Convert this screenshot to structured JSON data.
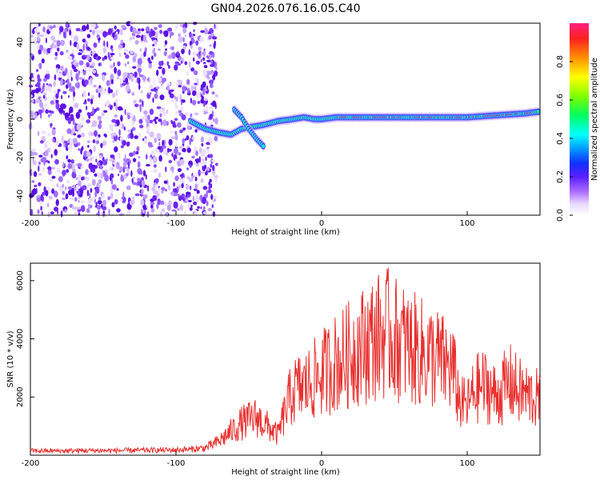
{
  "title": "GN04.2026.076.16.05.C40",
  "colors": {
    "snr_line": "#e8302e",
    "axis": "#000000",
    "background": "#ffffff"
  },
  "colorbar": {
    "label": "Normalized spectral amplitude",
    "ticks": [
      "0.0",
      "0.2",
      "0.4",
      "0.6",
      "0.8"
    ],
    "range": [
      0,
      1
    ]
  },
  "chart_data": [
    {
      "type": "heatmap",
      "title": "GN04.2026.076.16.05.C40",
      "xlabel": "Height of straight line (km)",
      "ylabel": "Frequency (Hz)",
      "xlim": [
        -200,
        150
      ],
      "ylim": [
        -50,
        50
      ],
      "x_ticks": [
        "-200",
        "-100",
        "0",
        "100"
      ],
      "y_ticks": [
        "40",
        "20",
        "0",
        "-20",
        "-40"
      ],
      "noise_region_x": [
        -200,
        -72
      ],
      "main_track": {
        "x": [
          -90,
          -80,
          -70,
          -62,
          -55,
          -48,
          -40,
          -30,
          -20,
          -12,
          -5,
          0,
          10,
          20,
          40,
          60,
          80,
          100,
          120,
          140,
          150
        ],
        "y": [
          -1,
          -5,
          -7,
          -8,
          -5,
          -4,
          -3,
          -1,
          0,
          1,
          0,
          0,
          1,
          1,
          1,
          1,
          1,
          1,
          2,
          3,
          4
        ]
      },
      "branch_track": {
        "x": [
          -60,
          -55,
          -50,
          -45,
          -40
        ],
        "y": [
          5,
          1,
          -5,
          -10,
          -14
        ]
      },
      "colorbar_label": "Normalized spectral amplitude"
    },
    {
      "type": "line",
      "xlabel": "Height of straight line (km)",
      "ylabel": "SNR (10 * v/v)",
      "xlim": [
        -200,
        150
      ],
      "ylim": [
        0,
        6600
      ],
      "x_ticks": [
        "-200",
        "-100",
        "0",
        "100"
      ],
      "y_ticks": [
        "6000",
        "4000",
        "2000"
      ],
      "series": [
        {
          "x": [
            -200,
            -180,
            -160,
            -140,
            -120,
            -100,
            -90,
            -80,
            -75,
            -70,
            -65,
            -60,
            -55,
            -50,
            -45,
            -40,
            -35,
            -30,
            -25,
            -20,
            -15,
            -10,
            -5,
            0,
            5,
            10,
            15,
            20,
            25,
            30,
            35,
            40,
            45,
            50,
            55,
            60,
            65,
            70,
            75,
            80,
            85,
            90,
            95,
            100,
            105,
            110,
            115,
            120,
            125,
            130,
            135,
            140,
            145,
            150
          ],
          "y": [
            150,
            150,
            160,
            160,
            170,
            180,
            200,
            250,
            350,
            500,
            700,
            900,
            1100,
            1200,
            1300,
            1100,
            900,
            700,
            1500,
            2200,
            2300,
            2400,
            2600,
            2800,
            3000,
            3200,
            3300,
            3500,
            3700,
            3800,
            4000,
            4100,
            4200,
            4000,
            3900,
            3700,
            3600,
            3500,
            3400,
            3300,
            3100,
            3000,
            1800,
            1700,
            2200,
            2400,
            2300,
            2000,
            2300,
            2500,
            2200,
            2100,
            2000,
            1900
          ]
        }
      ]
    }
  ]
}
